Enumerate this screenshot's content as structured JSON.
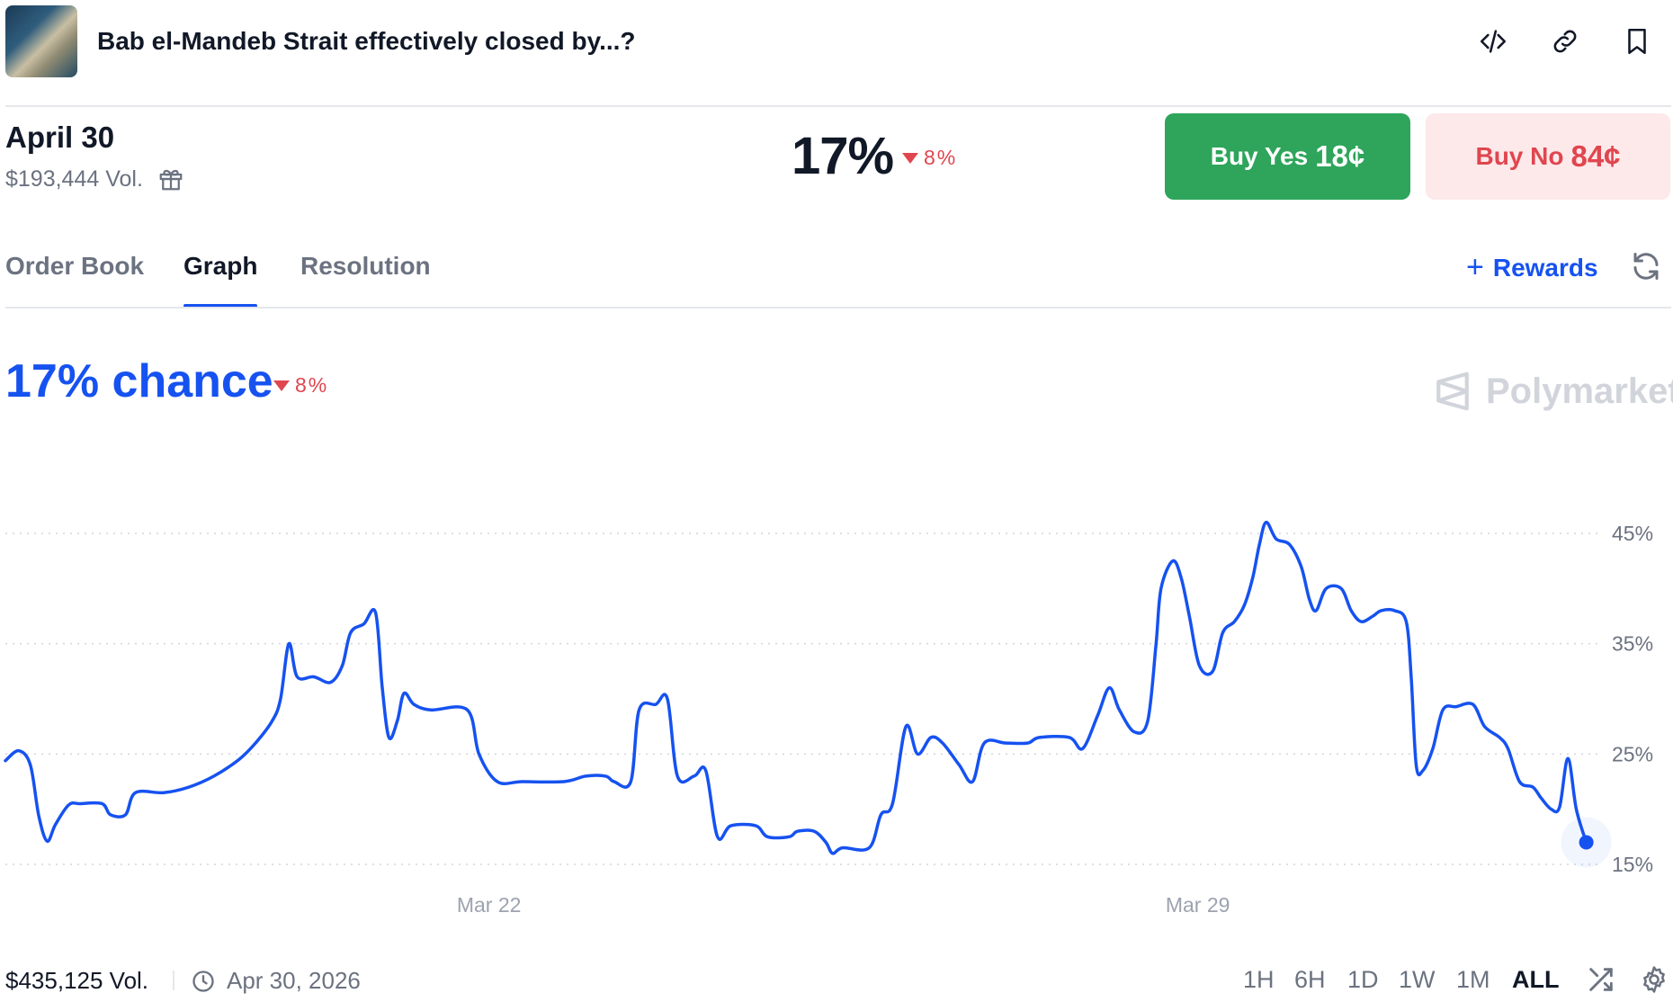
{
  "header": {
    "title": "Bab el-Mandeb Strait effectively closed by...?",
    "icons": [
      "embed-icon",
      "link-icon",
      "bookmark-icon"
    ]
  },
  "market": {
    "date": "April 30",
    "volume": "$193,444 Vol.",
    "probability": "17%",
    "change": "8%",
    "buy_yes_label": "Buy Yes",
    "buy_yes_price": "18¢",
    "buy_no_label": "Buy No",
    "buy_no_price": "84¢"
  },
  "tabs": [
    {
      "label": "Order Book",
      "active": false
    },
    {
      "label": "Graph",
      "active": true
    },
    {
      "label": "Resolution",
      "active": false
    }
  ],
  "rewards_label": "Rewards",
  "chance": {
    "text": "17% chance",
    "change": "8%"
  },
  "brand": "Polymarket",
  "colors": {
    "accent": "#1652f0",
    "yes": "#2ea55a",
    "no": "#e0464f"
  },
  "chart_data": {
    "type": "line",
    "x_ticks": [
      {
        "label": "Mar 22",
        "t": 0.29
      },
      {
        "label": "Mar 29",
        "t": 0.715
      }
    ],
    "y_ticks": [
      "45%",
      "35%",
      "25%",
      "15%"
    ],
    "ylim": [
      15,
      45
    ],
    "grid": true,
    "series": [
      {
        "color": "#1652f0",
        "points": [
          [
            0.0,
            24.4
          ],
          [
            0.008,
            25.3
          ],
          [
            0.015,
            24.0
          ],
          [
            0.02,
            19.4
          ],
          [
            0.025,
            17.1
          ],
          [
            0.03,
            18.6
          ],
          [
            0.038,
            20.4
          ],
          [
            0.045,
            20.5
          ],
          [
            0.058,
            20.5
          ],
          [
            0.063,
            19.5
          ],
          [
            0.072,
            19.5
          ],
          [
            0.078,
            21.5
          ],
          [
            0.095,
            21.5
          ],
          [
            0.11,
            22.0
          ],
          [
            0.125,
            23.0
          ],
          [
            0.14,
            24.5
          ],
          [
            0.15,
            26.0
          ],
          [
            0.16,
            28.0
          ],
          [
            0.165,
            30.0
          ],
          [
            0.17,
            35.0
          ],
          [
            0.175,
            32.0
          ],
          [
            0.185,
            32.0
          ],
          [
            0.195,
            31.5
          ],
          [
            0.202,
            33.0
          ],
          [
            0.207,
            36.0
          ],
          [
            0.215,
            36.8
          ],
          [
            0.222,
            37.8
          ],
          [
            0.226,
            31.0
          ],
          [
            0.23,
            26.5
          ],
          [
            0.235,
            28.0
          ],
          [
            0.239,
            30.5
          ],
          [
            0.245,
            29.5
          ],
          [
            0.255,
            29.0
          ],
          [
            0.277,
            29.0
          ],
          [
            0.284,
            25.0
          ],
          [
            0.295,
            22.5
          ],
          [
            0.31,
            22.5
          ],
          [
            0.335,
            22.5
          ],
          [
            0.348,
            23.0
          ],
          [
            0.36,
            23.0
          ],
          [
            0.365,
            22.5
          ],
          [
            0.375,
            22.5
          ],
          [
            0.38,
            29.0
          ],
          [
            0.39,
            29.5
          ],
          [
            0.397,
            30.0
          ],
          [
            0.403,
            23.0
          ],
          [
            0.413,
            23.0
          ],
          [
            0.42,
            23.5
          ],
          [
            0.427,
            17.5
          ],
          [
            0.435,
            18.5
          ],
          [
            0.45,
            18.5
          ],
          [
            0.457,
            17.5
          ],
          [
            0.47,
            17.5
          ],
          [
            0.475,
            18.0
          ],
          [
            0.485,
            18.0
          ],
          [
            0.492,
            17.0
          ],
          [
            0.496,
            16.0
          ],
          [
            0.502,
            16.5
          ],
          [
            0.518,
            16.5
          ],
          [
            0.525,
            19.5
          ],
          [
            0.532,
            20.5
          ],
          [
            0.54,
            27.5
          ],
          [
            0.547,
            25.0
          ],
          [
            0.555,
            26.5
          ],
          [
            0.562,
            26.0
          ],
          [
            0.572,
            24.0
          ],
          [
            0.58,
            22.5
          ],
          [
            0.587,
            26.0
          ],
          [
            0.6,
            26.0
          ],
          [
            0.613,
            26.0
          ],
          [
            0.62,
            26.5
          ],
          [
            0.638,
            26.5
          ],
          [
            0.646,
            25.5
          ],
          [
            0.655,
            28.5
          ],
          [
            0.662,
            31.0
          ],
          [
            0.668,
            29.0
          ],
          [
            0.677,
            27.0
          ],
          [
            0.685,
            28.0
          ],
          [
            0.69,
            35.0
          ],
          [
            0.693,
            40.0
          ],
          [
            0.7,
            42.5
          ],
          [
            0.705,
            41.0
          ],
          [
            0.71,
            37.5
          ],
          [
            0.716,
            33.0
          ],
          [
            0.724,
            32.5
          ],
          [
            0.73,
            36.0
          ],
          [
            0.737,
            37.0
          ],
          [
            0.743,
            38.5
          ],
          [
            0.748,
            41.0
          ],
          [
            0.752,
            44.0
          ],
          [
            0.756,
            46.0
          ],
          [
            0.762,
            44.5
          ],
          [
            0.77,
            44.0
          ],
          [
            0.777,
            42.0
          ],
          [
            0.782,
            39.0
          ],
          [
            0.786,
            38.0
          ],
          [
            0.792,
            40.0
          ],
          [
            0.801,
            40.0
          ],
          [
            0.807,
            38.0
          ],
          [
            0.813,
            37.0
          ],
          [
            0.82,
            37.5
          ],
          [
            0.825,
            38.0
          ],
          [
            0.833,
            38.0
          ],
          [
            0.84,
            37.0
          ],
          [
            0.843,
            32.0
          ],
          [
            0.846,
            24.0
          ],
          [
            0.85,
            23.5
          ],
          [
            0.856,
            25.5
          ],
          [
            0.862,
            29.0
          ],
          [
            0.87,
            29.3
          ],
          [
            0.88,
            29.5
          ],
          [
            0.887,
            27.5
          ],
          [
            0.896,
            26.5
          ],
          [
            0.901,
            25.5
          ],
          [
            0.908,
            22.5
          ],
          [
            0.916,
            22.0
          ],
          [
            0.921,
            21.0
          ],
          [
            0.927,
            20.0
          ],
          [
            0.932,
            20.2
          ],
          [
            0.937,
            24.6
          ],
          [
            0.942,
            20.0
          ],
          [
            0.948,
            17.0
          ]
        ],
        "end_marker": true
      }
    ]
  },
  "footer": {
    "volume": "$435,125 Vol.",
    "end_date": "Apr 30, 2026",
    "ranges": [
      {
        "label": "1H",
        "active": false
      },
      {
        "label": "6H",
        "active": false
      },
      {
        "label": "1D",
        "active": false
      },
      {
        "label": "1W",
        "active": false
      },
      {
        "label": "1M",
        "active": false
      },
      {
        "label": "ALL",
        "active": true
      }
    ]
  }
}
